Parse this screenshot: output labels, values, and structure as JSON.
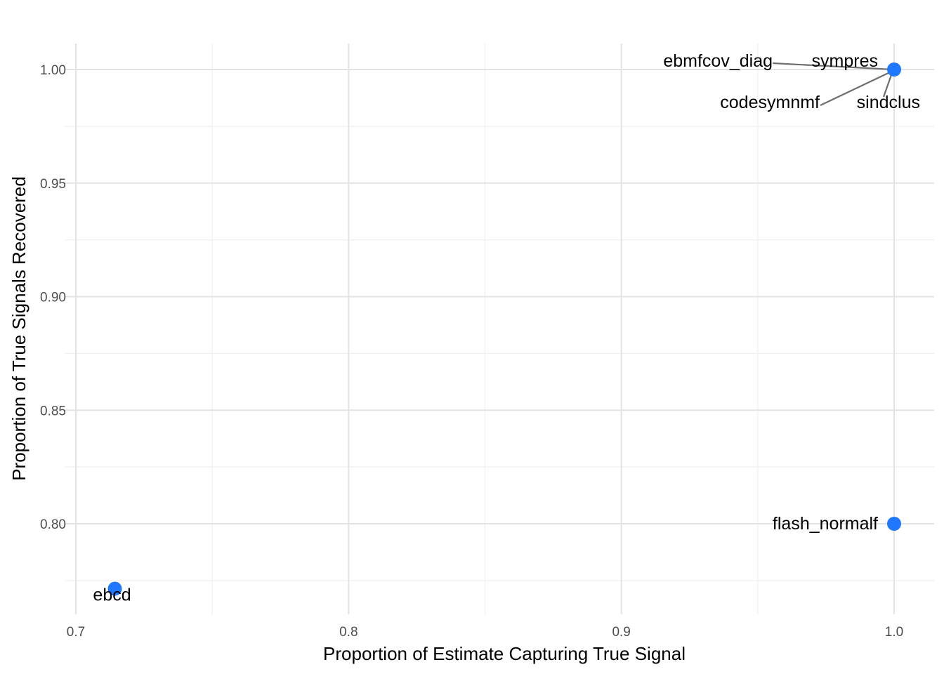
{
  "chart_data": {
    "type": "scatter",
    "title": "",
    "xlabel": "Proportion of Estimate Capturing True Signal",
    "ylabel": "Proportion of True Signals Recovered",
    "xlim": [
      0.7,
      1.0
    ],
    "ylim": [
      0.77,
      1.0
    ],
    "x_ticks": [
      0.7,
      0.8,
      0.9,
      1.0
    ],
    "x_tick_labels": [
      "0.7",
      "0.8",
      "0.9",
      "1.0"
    ],
    "y_ticks": [
      0.8,
      0.85,
      0.9,
      0.95,
      1.0
    ],
    "y_tick_labels": [
      "0.80",
      "0.85",
      "0.90",
      "0.95",
      "1.00"
    ],
    "grid": true,
    "point_color": "#1f78ff",
    "points": [
      {
        "label": "ebmfcov_diag",
        "x": 1.0,
        "y": 1.0
      },
      {
        "label": "sympres",
        "x": 1.0,
        "y": 1.0
      },
      {
        "label": "codesymnmf",
        "x": 1.0,
        "y": 1.0
      },
      {
        "label": "sindclus",
        "x": 1.0,
        "y": 1.0
      },
      {
        "label": "flash_normalf",
        "x": 1.0,
        "y": 0.8
      },
      {
        "label": "ebcd",
        "x": 0.7143,
        "y": 0.7714
      }
    ]
  }
}
